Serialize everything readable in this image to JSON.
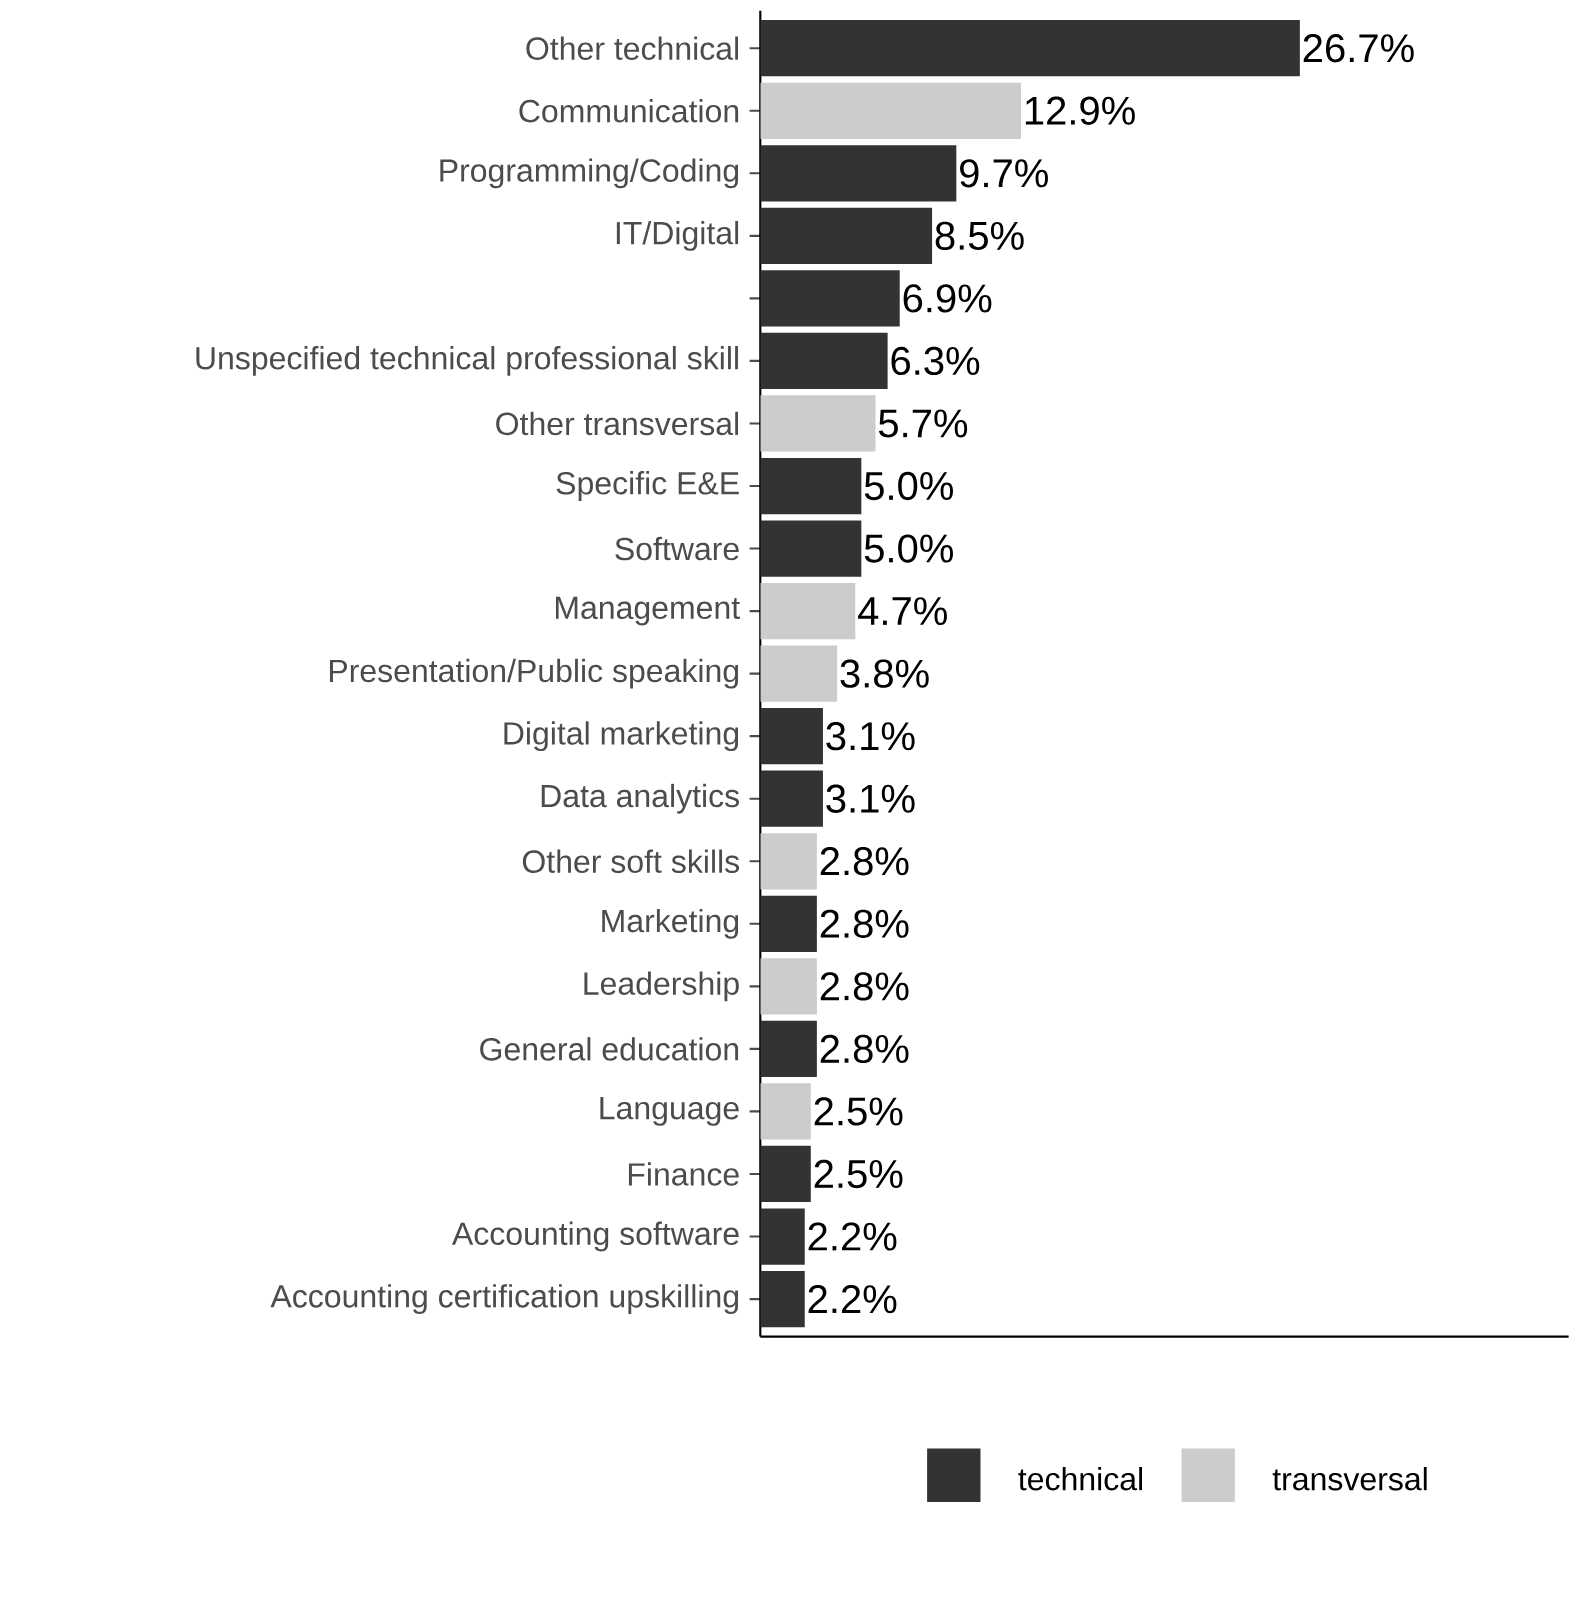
{
  "chart_data": {
    "type": "bar",
    "orientation": "horizontal",
    "categories": [
      "Other technical",
      "Communication",
      "Programming/Coding",
      "IT/Digital",
      null,
      "Unspecified technical professional skill",
      "Other transversal",
      "Specific E&E",
      "Software",
      "Management",
      "Presentation/Public speaking",
      "Digital marketing",
      "Data analytics",
      "Other soft skills",
      "Marketing",
      "Leadership",
      "General education",
      "Language",
      "Finance",
      "Accounting software",
      "Accounting certification upskilling"
    ],
    "series": [
      {
        "name": "technical",
        "color": "#333333",
        "values": [
          26.7,
          null,
          9.7,
          8.5,
          6.9,
          6.3,
          null,
          5.0,
          5.0,
          null,
          null,
          3.1,
          3.1,
          null,
          2.8,
          null,
          2.8,
          null,
          2.5,
          2.2,
          2.2
        ],
        "value_labels": [
          "26.7%",
          null,
          "9.7%",
          "8.5%",
          "6.9%",
          "6.3%",
          null,
          "5.0%",
          "5.0%",
          null,
          null,
          "3.1%",
          "3.1%",
          null,
          "2.8%",
          null,
          "2.8%",
          null,
          "2.5%",
          "2.2%",
          "2.2%"
        ]
      },
      {
        "name": "transversal",
        "color": "#cccccc",
        "values": [
          null,
          12.9,
          null,
          null,
          null,
          null,
          5.7,
          null,
          null,
          4.7,
          3.8,
          null,
          null,
          2.8,
          null,
          2.8,
          null,
          2.5,
          null,
          null,
          null
        ],
        "value_labels": [
          null,
          "12.9%",
          null,
          null,
          null,
          null,
          "5.7%",
          null,
          null,
          "4.7%",
          "3.8%",
          null,
          null,
          "2.8%",
          null,
          "2.8%",
          null,
          "2.5%",
          null,
          null,
          null
        ]
      }
    ],
    "xlim": [
      0,
      40
    ],
    "tick_labels": "y",
    "legend": "bottom"
  }
}
